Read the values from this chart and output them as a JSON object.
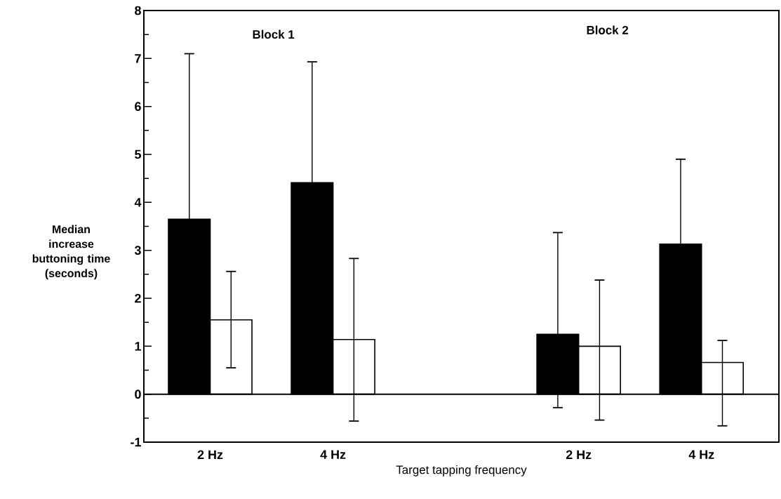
{
  "chart_data": {
    "type": "bar",
    "xlabel": "Target tapping frequency",
    "ylabel": "Median increase buttoning time (seconds)",
    "categories": [
      "2 Hz",
      "4 Hz",
      null,
      "2 Hz",
      "4 Hz"
    ],
    "series": [
      {
        "color": "#000000",
        "values": [
          3.65,
          4.41,
          null,
          1.25,
          3.13
        ],
        "errors": [
          [
            3.65,
            7.1
          ],
          [
            4.41,
            6.93
          ],
          null,
          [
            -0.28,
            3.37
          ],
          [
            3.13,
            4.9
          ]
        ]
      },
      {
        "color": "#ffffff",
        "values": [
          1.55,
          1.14,
          null,
          1.0,
          0.66
        ],
        "errors": [
          [
            0.55,
            2.56
          ],
          [
            -0.56,
            2.83
          ],
          null,
          [
            -0.54,
            2.38
          ],
          [
            -0.66,
            1.12
          ]
        ]
      }
    ],
    "ylim": [
      -1,
      8
    ],
    "yticks": [
      -1,
      0,
      1,
      2,
      3,
      4,
      5,
      6,
      7,
      8
    ],
    "annotations": [
      "Block 1",
      "Block 2"
    ]
  }
}
